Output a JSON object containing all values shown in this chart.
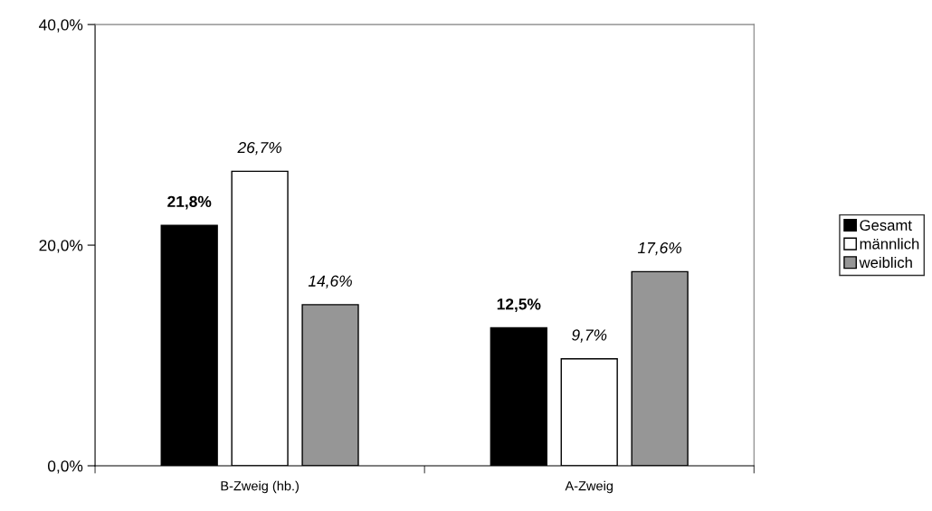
{
  "chart_data": {
    "type": "bar",
    "categories": [
      "B-Zweig (hb.)",
      "A-Zweig"
    ],
    "series": [
      {
        "name": "Gesamt",
        "color": "#000000",
        "values": [
          21.8,
          12.5
        ],
        "value_labels": [
          "21,8%",
          "12,5%"
        ]
      },
      {
        "name": "männlich",
        "color": "#ffffff",
        "values": [
          26.7,
          9.7
        ],
        "value_labels": [
          "26,7%",
          "9,7%"
        ]
      },
      {
        "name": "weiblich",
        "color": "#969696",
        "values": [
          14.6,
          17.6
        ],
        "value_labels": [
          "14,6%",
          "17,6%"
        ]
      }
    ],
    "ylim": [
      0,
      40
    ],
    "yticks": [
      {
        "value": 0,
        "label": "0,0%"
      },
      {
        "value": 20,
        "label": "20,0%"
      },
      {
        "value": 40,
        "label": "40,0%"
      }
    ],
    "grid": false,
    "legend": "right"
  }
}
